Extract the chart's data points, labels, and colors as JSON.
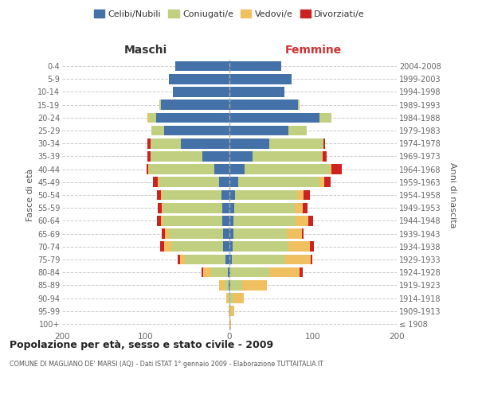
{
  "age_groups": [
    "100+",
    "95-99",
    "90-94",
    "85-89",
    "80-84",
    "75-79",
    "70-74",
    "65-69",
    "60-64",
    "55-59",
    "50-54",
    "45-49",
    "40-44",
    "35-39",
    "30-34",
    "25-29",
    "20-24",
    "15-19",
    "10-14",
    "5-9",
    "0-4"
  ],
  "birth_years": [
    "≤ 1908",
    "1909-1913",
    "1914-1918",
    "1919-1923",
    "1924-1928",
    "1929-1933",
    "1934-1938",
    "1939-1943",
    "1944-1948",
    "1949-1953",
    "1954-1958",
    "1959-1963",
    "1964-1968",
    "1969-1973",
    "1974-1978",
    "1979-1983",
    "1984-1988",
    "1989-1993",
    "1994-1998",
    "1999-2003",
    "2004-2008"
  ],
  "colors": {
    "celibi": "#4472a8",
    "coniugati": "#c0d080",
    "vedovi": "#f0c060",
    "divorziati": "#cc2222"
  },
  "maschi": {
    "celibi": [
      0,
      0,
      0,
      1,
      2,
      5,
      8,
      8,
      9,
      9,
      10,
      12,
      18,
      32,
      58,
      78,
      88,
      82,
      68,
      72,
      65
    ],
    "coniugati": [
      0,
      0,
      1,
      5,
      20,
      48,
      62,
      64,
      70,
      70,
      70,
      72,
      78,
      62,
      36,
      15,
      8,
      2,
      0,
      0,
      0
    ],
    "vedovi": [
      0,
      1,
      3,
      6,
      9,
      6,
      8,
      5,
      3,
      2,
      2,
      2,
      1,
      0,
      0,
      0,
      2,
      0,
      0,
      0,
      0
    ],
    "divorziati": [
      0,
      0,
      0,
      0,
      2,
      3,
      5,
      4,
      5,
      5,
      5,
      5,
      2,
      4,
      4,
      0,
      0,
      0,
      0,
      0,
      0
    ]
  },
  "femmine": {
    "celibi": [
      0,
      0,
      0,
      1,
      1,
      3,
      4,
      5,
      5,
      6,
      7,
      10,
      18,
      28,
      48,
      70,
      108,
      82,
      66,
      74,
      62
    ],
    "coniugati": [
      0,
      2,
      5,
      14,
      47,
      64,
      66,
      64,
      74,
      72,
      74,
      98,
      102,
      82,
      64,
      22,
      14,
      2,
      0,
      0,
      0
    ],
    "vedovi": [
      2,
      4,
      12,
      30,
      36,
      30,
      26,
      18,
      15,
      10,
      8,
      5,
      2,
      1,
      0,
      0,
      0,
      0,
      0,
      0,
      0
    ],
    "divorziati": [
      0,
      0,
      0,
      0,
      4,
      2,
      5,
      2,
      6,
      5,
      7,
      8,
      12,
      5,
      2,
      0,
      0,
      0,
      0,
      0,
      0
    ]
  },
  "title_main": "Popolazione per età, sesso e stato civile - 2009",
  "title_sub": "COMUNE DI MAGLIANO DE' MARSI (AQ) - Dati ISTAT 1° gennaio 2009 - Elaborazione TUTTAITALIA.IT",
  "xlabel_maschi": "Maschi",
  "xlabel_femmine": "Femmine",
  "ylabel_left": "Fasce di età",
  "ylabel_right": "Anni di nascita",
  "xlim": 200,
  "legend_labels": [
    "Celibi/Nubili",
    "Coniugati/e",
    "Vedovi/e",
    "Divorziati/e"
  ],
  "bg_color": "#ffffff",
  "grid_color": "#cccccc"
}
